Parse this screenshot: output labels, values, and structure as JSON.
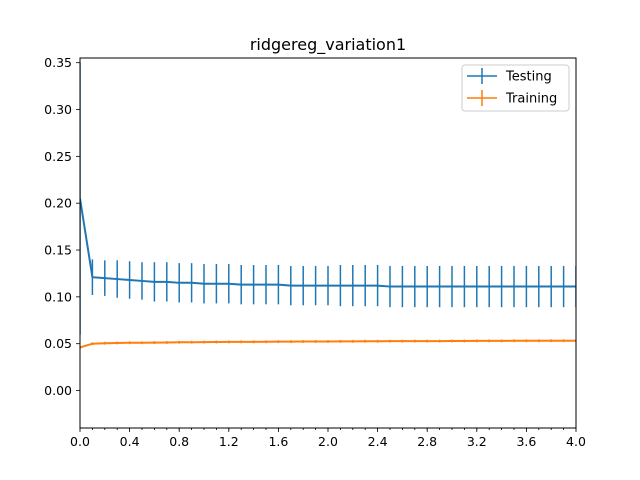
{
  "chart_data": {
    "type": "line",
    "title": "ridgereg_variation1",
    "xlabel": "",
    "ylabel": "",
    "xlim": [
      0.0,
      4.0
    ],
    "ylim": [
      -0.04,
      0.355
    ],
    "xticks": [
      "0.0",
      "0.4",
      "0.8",
      "1.2",
      "1.6",
      "2.0",
      "2.4",
      "2.8",
      "3.2",
      "3.6",
      "4.0"
    ],
    "xtick_values": [
      0.0,
      0.4,
      0.8,
      1.2,
      1.6,
      2.0,
      2.4,
      2.8,
      3.2,
      3.6,
      4.0
    ],
    "yticks": [
      "0.00",
      "0.05",
      "0.10",
      "0.15",
      "0.20",
      "0.25",
      "0.30",
      "0.35"
    ],
    "ytick_values": [
      0.0,
      0.05,
      0.1,
      0.15,
      0.2,
      0.25,
      0.3,
      0.35
    ],
    "legend_position": "top-right",
    "grid": false,
    "x": [
      0.0,
      0.1,
      0.2,
      0.3,
      0.4,
      0.5,
      0.6,
      0.7,
      0.8,
      0.9,
      1.0,
      1.1,
      1.2,
      1.3,
      1.4,
      1.5,
      1.6,
      1.7,
      1.8,
      1.9,
      2.0,
      2.1,
      2.2,
      2.3,
      2.4,
      2.5,
      2.6,
      2.7,
      2.8,
      2.9,
      3.0,
      3.1,
      3.2,
      3.3,
      3.4,
      3.5,
      3.6,
      3.7,
      3.8,
      3.9,
      4.0
    ],
    "series": [
      {
        "name": "Testing",
        "color": "#1f77b4",
        "values": [
          0.205,
          0.121,
          0.12,
          0.119,
          0.118,
          0.117,
          0.116,
          0.116,
          0.115,
          0.115,
          0.114,
          0.114,
          0.114,
          0.113,
          0.113,
          0.113,
          0.113,
          0.112,
          0.112,
          0.112,
          0.112,
          0.112,
          0.112,
          0.112,
          0.112,
          0.111,
          0.111,
          0.111,
          0.111,
          0.111,
          0.111,
          0.111,
          0.111,
          0.111,
          0.111,
          0.111,
          0.111,
          0.111,
          0.111,
          0.111,
          0.111
        ],
        "errors": [
          0.145,
          0.019,
          0.019,
          0.02,
          0.02,
          0.02,
          0.021,
          0.021,
          0.021,
          0.021,
          0.021,
          0.021,
          0.021,
          0.021,
          0.021,
          0.021,
          0.021,
          0.021,
          0.021,
          0.021,
          0.021,
          0.022,
          0.022,
          0.022,
          0.022,
          0.022,
          0.022,
          0.022,
          0.022,
          0.022,
          0.022,
          0.022,
          0.022,
          0.022,
          0.022,
          0.022,
          0.022,
          0.022,
          0.022,
          0.022,
          0.022
        ]
      },
      {
        "name": "Training",
        "color": "#ff7f0e",
        "values": [
          0.046,
          0.05,
          0.0505,
          0.0508,
          0.051,
          0.051,
          0.0512,
          0.0513,
          0.0515,
          0.0516,
          0.0517,
          0.0518,
          0.0519,
          0.052,
          0.052,
          0.0521,
          0.0522,
          0.0522,
          0.0523,
          0.0524,
          0.0524,
          0.0525,
          0.0525,
          0.0526,
          0.0526,
          0.0527,
          0.0527,
          0.0528,
          0.0528,
          0.0528,
          0.0529,
          0.0529,
          0.053,
          0.053,
          0.053,
          0.0531,
          0.0531,
          0.0531,
          0.0532,
          0.0532,
          0.0532
        ],
        "errors": [
          0.0015,
          0.0015,
          0.0015,
          0.0015,
          0.0015,
          0.0015,
          0.0015,
          0.0015,
          0.0015,
          0.0015,
          0.0015,
          0.0015,
          0.0015,
          0.0015,
          0.0015,
          0.0015,
          0.0015,
          0.0015,
          0.0015,
          0.0015,
          0.0015,
          0.0015,
          0.0015,
          0.0015,
          0.0015,
          0.0015,
          0.0015,
          0.0015,
          0.0015,
          0.0015,
          0.0015,
          0.0015,
          0.0015,
          0.0015,
          0.0015,
          0.0015,
          0.0015,
          0.0015,
          0.0015,
          0.0015,
          0.0015
        ]
      }
    ]
  }
}
